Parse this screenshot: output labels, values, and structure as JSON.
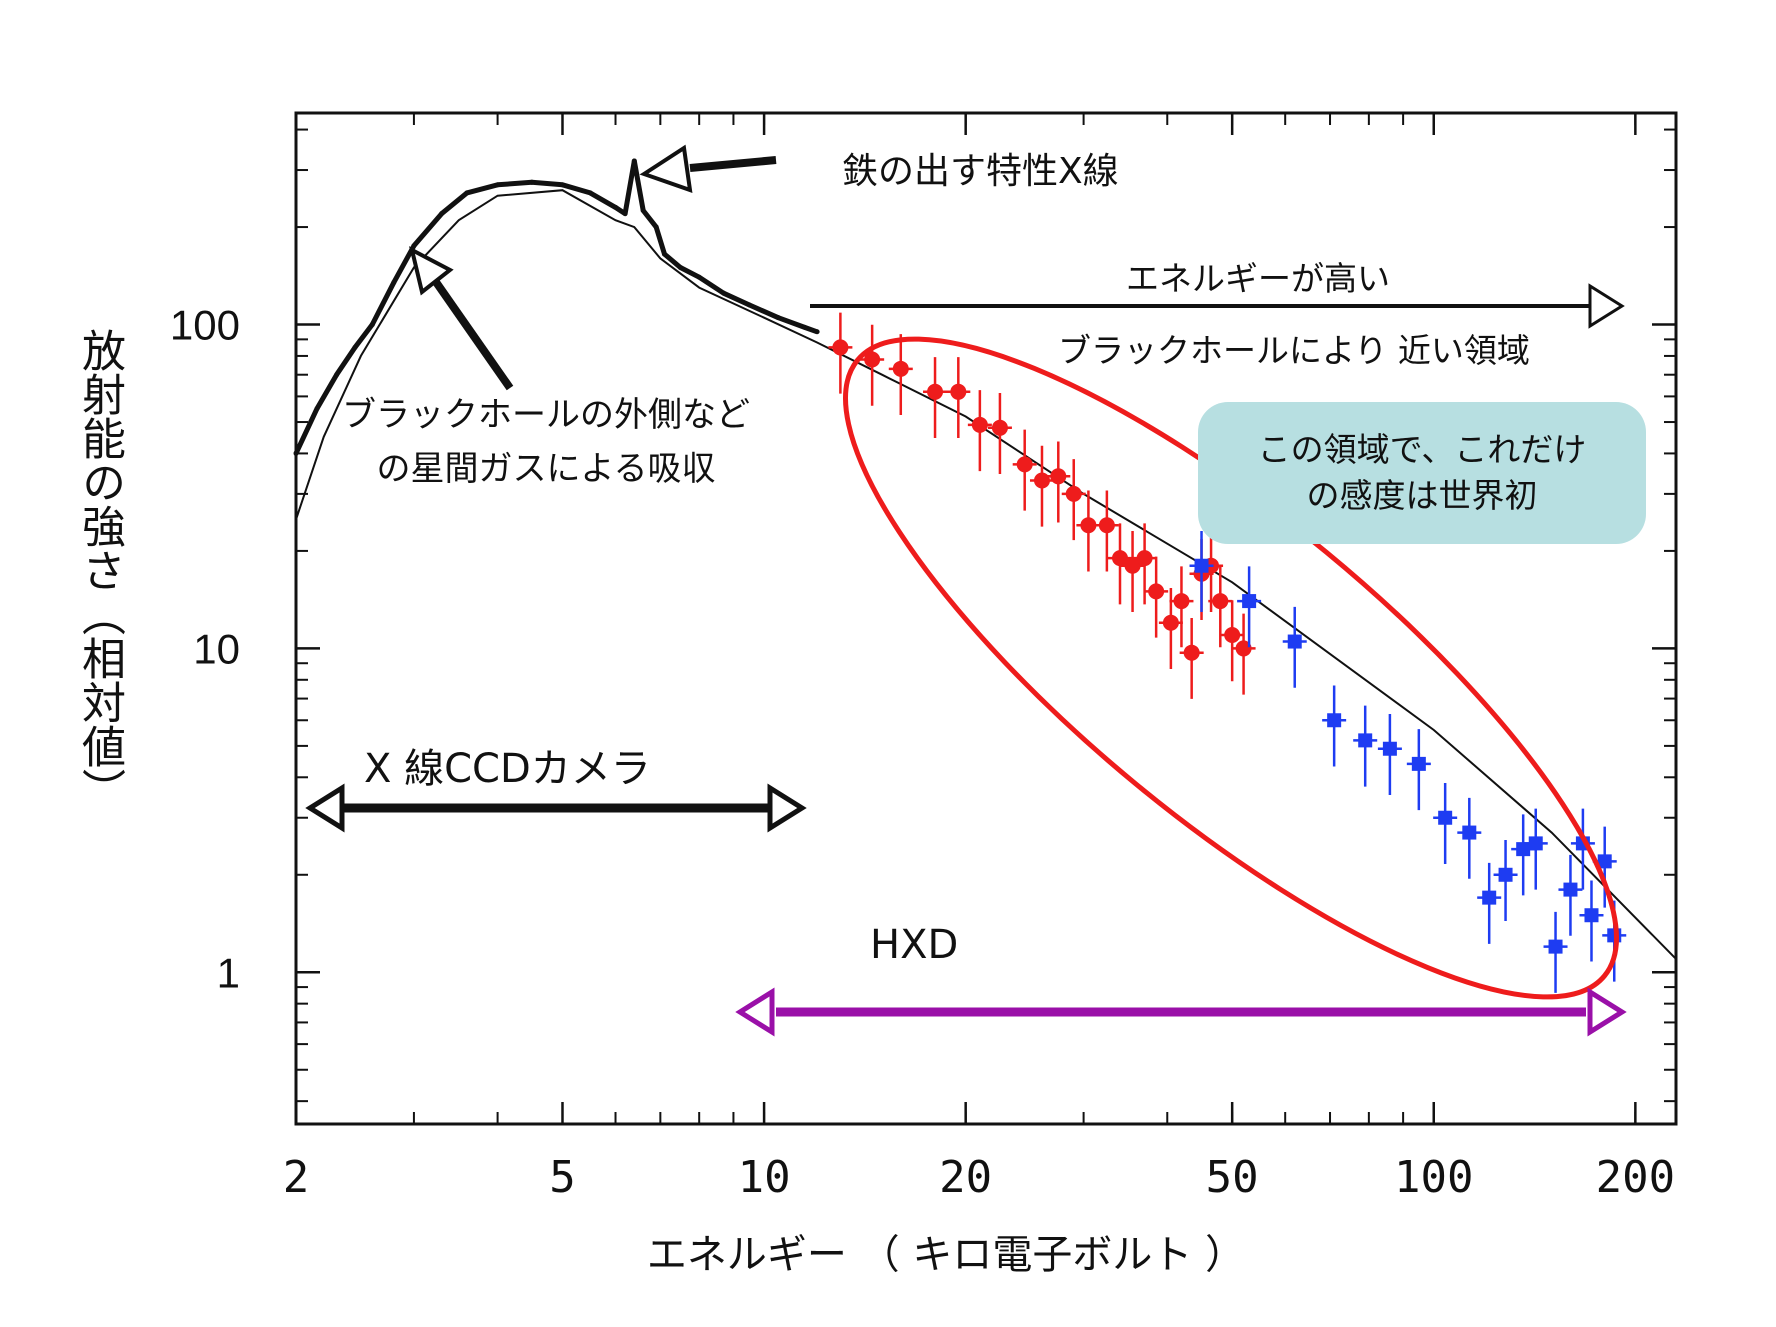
{
  "chart_data": {
    "type": "scatter",
    "xscale": "log",
    "yscale": "log",
    "xlim": [
      2,
      230
    ],
    "ylim": [
      0.34,
      450
    ],
    "xlabel": "エネルギー （ キロ電子ボルト ）",
    "ylabel": "放射能の強さ（相対値）",
    "x_ticks": [
      "2",
      "5",
      "10",
      "20",
      "50",
      "100",
      "200"
    ],
    "x_tick_values": [
      2,
      5,
      10,
      20,
      50,
      100,
      200
    ],
    "y_ticks": [
      "1",
      "10",
      "100"
    ],
    "y_tick_values": [
      1,
      10,
      100
    ],
    "model_curve": {
      "x": [
        2,
        2.2,
        2.5,
        3,
        3.5,
        4,
        5,
        6,
        6.4,
        7,
        8,
        10,
        12,
        15,
        20,
        30,
        50,
        100,
        150,
        230
      ],
      "y": [
        25,
        45,
        80,
        150,
        210,
        250,
        260,
        210,
        200,
        160,
        130,
        105,
        88,
        70,
        52,
        30,
        16,
        5.6,
        2.7,
        1.1
      ]
    },
    "ccd_spectrum": {
      "x": [
        2,
        2.15,
        2.3,
        2.45,
        2.6,
        2.8,
        3,
        3.3,
        3.6,
        4,
        4.5,
        5,
        5.5,
        6,
        6.2,
        6.4,
        6.6,
        6.9,
        7.1,
        7.5,
        8,
        8.7,
        9.5,
        10.5,
        11.5,
        12
      ],
      "y": [
        40,
        55,
        70,
        85,
        100,
        135,
        175,
        220,
        255,
        270,
        275,
        270,
        255,
        230,
        220,
        320,
        225,
        200,
        165,
        150,
        140,
        125,
        115,
        105,
        98,
        95
      ]
    },
    "series": [
      {
        "color": "#ee1c1c",
        "x": [
          13,
          14.5,
          16,
          18,
          19.5,
          21,
          22.5,
          24.5,
          26,
          27.5,
          29,
          30.5,
          32.5,
          34,
          35.5,
          37,
          38.5,
          40.5,
          42,
          43.5,
          45,
          46.5,
          48,
          50,
          52
        ],
        "y": [
          85,
          78,
          73,
          62,
          62,
          49,
          48,
          37,
          33,
          34,
          30,
          24,
          24,
          19,
          18,
          19,
          15,
          12,
          14,
          9.7,
          17,
          18,
          14,
          11,
          10
        ]
      },
      {
        "color": "#1e3cf2",
        "x": [
          45,
          53,
          62,
          71,
          79,
          86,
          95,
          104,
          113,
          121,
          128,
          136,
          142,
          152,
          160,
          167,
          172,
          180,
          186
        ],
        "y": [
          18,
          14,
          10.5,
          6,
          5.2,
          4.9,
          4.4,
          3.0,
          2.7,
          1.7,
          2.0,
          2.4,
          2.5,
          1.2,
          1.8,
          2.5,
          1.5,
          2.2,
          1.3
        ]
      }
    ]
  },
  "annotations": {
    "iron_line": "鉄の出す特性X線",
    "absorption": "ブラックホールの外側など\nの星間ガスによる吸収",
    "energy_high": "エネルギーが高い",
    "near_region": "ブラックホールにより 近い領域",
    "callout": "この領域で、これだけ\nの感度は世界初",
    "ccd_camera": "X 線CCDカメラ",
    "hxd": "HXD"
  },
  "colors": {
    "red_points": "#ee1c1c",
    "blue_points": "#1e3cf2",
    "ellipse": "#ee1c1c",
    "hxd_arrow": "#9a10a8",
    "callout_bg": "#b7dfe1"
  }
}
